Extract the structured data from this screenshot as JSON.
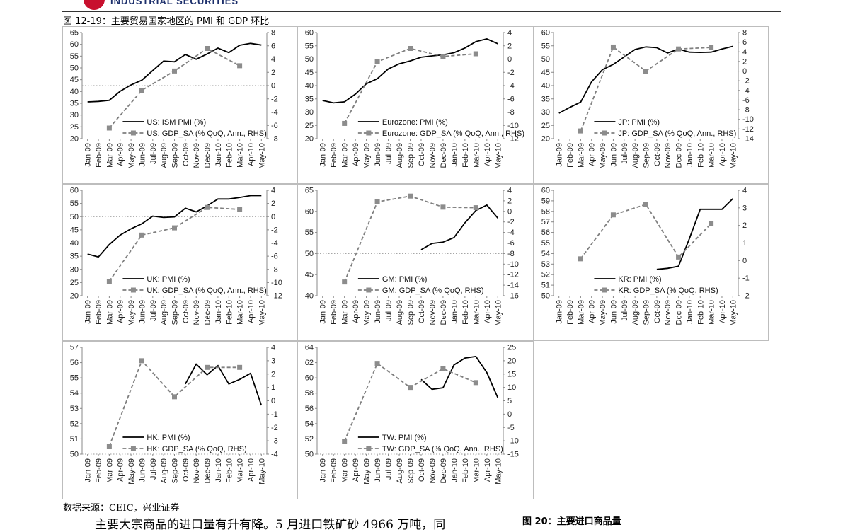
{
  "header": {
    "logo_text": "INDUSTRIAL SECURITIES"
  },
  "figure_title": "图 12-19：主要贸易国家地区的 PMI 和 GDP 环比",
  "source_note": "数据来源：CEIC，兴业证券",
  "body_text": "主要大宗商品的进口量有升有降。5 月进口铁矿砂 4966 万吨，同",
  "next_figure_title": "图 20：主要进口商品量",
  "months": [
    "Jan-09",
    "Feb-09",
    "Mar-09",
    "Apr-09",
    "May-09",
    "Jun-09",
    "Jul-09",
    "Aug-09",
    "Sep-09",
    "Oct-09",
    "Nov-09",
    "Dec-09",
    "Jan-10",
    "Feb-10",
    "Mar-10",
    "Apr-10",
    "May-10"
  ],
  "colors": {
    "pmi": "#000000",
    "gdp": "#7f7f7f",
    "gdp_marker": "#8c8c8c",
    "refline": "#9a9a9a",
    "frame": "#bdbdbd"
  },
  "chart_data": [
    {
      "type": "line",
      "series": [
        {
          "name": "US: ISM PMI (%)",
          "axis": "left",
          "style": "solid",
          "values": [
            35.6,
            35.8,
            36.3,
            40.1,
            42.8,
            44.8,
            48.9,
            52.9,
            52.6,
            55.7,
            53.7,
            55.9,
            58.4,
            56.5,
            59.6,
            60.4,
            59.7
          ]
        },
        {
          "name": "US: GDP_SA (% QoQ, Ann., RHS)",
          "axis": "right",
          "style": "dashed-square",
          "values": [
            null,
            null,
            -6.4,
            null,
            null,
            -0.7,
            null,
            null,
            2.2,
            null,
            null,
            5.6,
            null,
            null,
            3.0,
            null,
            null
          ]
        }
      ],
      "yleft": {
        "min": 20,
        "max": 65,
        "step": 5
      },
      "yright": {
        "min": -8,
        "max": 8,
        "step": 2
      },
      "refline_right": 0
    },
    {
      "type": "line",
      "series": [
        {
          "name": "Eurozone: PMI (%)",
          "axis": "left",
          "style": "solid",
          "values": [
            34.4,
            33.5,
            33.9,
            36.8,
            40.7,
            42.6,
            46.3,
            48.2,
            49.3,
            50.7,
            51.2,
            51.6,
            52.4,
            54.2,
            56.6,
            57.6,
            55.8
          ]
        },
        {
          "name": "Eurozone: GDP_SA (% QoQ, Ann., RHS)",
          "axis": "right",
          "style": "dashed-square",
          "values": [
            null,
            null,
            -9.7,
            null,
            null,
            -0.4,
            null,
            null,
            1.6,
            null,
            null,
            0.4,
            null,
            null,
            0.8,
            null,
            null
          ]
        }
      ],
      "yleft": {
        "min": 20,
        "max": 60,
        "step": 5
      },
      "yright": {
        "min": -12,
        "max": 4,
        "step": 2
      },
      "refline_right": 0
    },
    {
      "type": "line",
      "series": [
        {
          "name": "JP: PMI (%)",
          "axis": "left",
          "style": "solid",
          "values": [
            29.6,
            31.8,
            33.8,
            41.4,
            46.0,
            48.0,
            50.8,
            53.6,
            54.6,
            54.3,
            52.3,
            53.8,
            52.6,
            52.5,
            52.6,
            53.8,
            54.8
          ]
        },
        {
          "name": "JP: GDP_SA (% QoQ, Ann., RHS)",
          "axis": "right",
          "style": "dashed-square",
          "values": [
            null,
            null,
            -12.4,
            null,
            null,
            5.0,
            null,
            null,
            0.0,
            null,
            null,
            4.6,
            null,
            null,
            4.9,
            null,
            null
          ]
        }
      ],
      "yleft": {
        "min": 20,
        "max": 60,
        "step": 5
      },
      "yright": {
        "min": -14,
        "max": 8,
        "step": 2
      },
      "refline_right": 0
    },
    {
      "type": "line",
      "series": [
        {
          "name": "UK: PMI (%)",
          "axis": "left",
          "style": "solid",
          "values": [
            35.8,
            34.7,
            39.4,
            43.0,
            45.4,
            47.3,
            50.2,
            49.7,
            49.9,
            53.2,
            51.8,
            54.1,
            56.7,
            56.7,
            57.3,
            58.0,
            58.0
          ]
        },
        {
          "name": "UK: GDP_SA (% QoQ, Ann., RHS)",
          "axis": "right",
          "style": "dashed-square",
          "values": [
            null,
            null,
            -9.8,
            null,
            null,
            -2.8,
            null,
            null,
            -1.7,
            null,
            null,
            1.4,
            null,
            null,
            1.1,
            null,
            null
          ]
        }
      ],
      "yleft": {
        "min": 20,
        "max": 60,
        "step": 5
      },
      "yright": {
        "min": -12,
        "max": 4,
        "step": 2
      },
      "refline_right": 0
    },
    {
      "type": "line",
      "series": [
        {
          "name": "GM: PMI (%)",
          "axis": "left",
          "style": "solid",
          "values": [
            null,
            null,
            null,
            null,
            null,
            null,
            null,
            null,
            null,
            50.9,
            52.4,
            52.7,
            53.8,
            57.3,
            60.2,
            61.5,
            58.4
          ]
        },
        {
          "name": "GM: GDP_SA (% QoQ, RHS)",
          "axis": "right",
          "style": "dashed-square",
          "values": [
            null,
            null,
            -13.4,
            null,
            null,
            1.8,
            null,
            null,
            2.9,
            null,
            null,
            0.8,
            null,
            null,
            0.7,
            null,
            null
          ]
        }
      ],
      "yleft": {
        "min": 40,
        "max": 65,
        "step": 5
      },
      "yright": {
        "min": -16,
        "max": 4,
        "step": 2
      },
      "refline_right": -8
    },
    {
      "type": "line",
      "series": [
        {
          "name": "KR: PMI (%)",
          "axis": "left",
          "style": "solid",
          "values": [
            null,
            null,
            null,
            null,
            null,
            null,
            null,
            null,
            null,
            52.5,
            52.6,
            52.8,
            55.4,
            58.2,
            58.2,
            58.2,
            59.2
          ]
        },
        {
          "name": "KR: GDP_SA (% QoQ, RHS)",
          "axis": "right",
          "style": "dashed-square",
          "values": [
            null,
            null,
            0.1,
            null,
            null,
            2.6,
            null,
            null,
            3.2,
            null,
            null,
            0.2,
            null,
            null,
            2.1,
            null,
            null
          ]
        }
      ],
      "yleft": {
        "min": 50,
        "max": 60,
        "step": 1
      },
      "yright": {
        "min": -2,
        "max": 4,
        "step": 1
      },
      "refline_right": null
    },
    {
      "type": "line",
      "series": [
        {
          "name": "HK: PMI (%)",
          "axis": "left",
          "style": "solid",
          "values": [
            null,
            null,
            null,
            null,
            null,
            null,
            null,
            null,
            null,
            54.6,
            55.9,
            55.2,
            55.8,
            54.6,
            54.9,
            55.3,
            53.2
          ]
        },
        {
          "name": "HK: GDP_SA (% QoQ, RHS)",
          "axis": "right",
          "style": "dashed-square",
          "values": [
            null,
            null,
            -3.4,
            null,
            null,
            3.0,
            null,
            null,
            0.3,
            null,
            null,
            2.5,
            null,
            null,
            2.5,
            null,
            null
          ]
        }
      ],
      "yleft": {
        "min": 50,
        "max": 57,
        "step": 1
      },
      "yright": {
        "min": -4,
        "max": 4,
        "step": 1
      },
      "refline_right": -4
    },
    {
      "type": "line",
      "series": [
        {
          "name": "TW: PMI (%)",
          "axis": "left",
          "style": "solid",
          "values": [
            null,
            null,
            null,
            null,
            null,
            null,
            null,
            null,
            null,
            59.8,
            58.5,
            58.7,
            61.7,
            62.6,
            62.8,
            60.7,
            57.4
          ]
        },
        {
          "name": "TW: GDP_SA (% QoQ, Ann., RHS)",
          "axis": "right",
          "style": "dashed-square",
          "values": [
            null,
            null,
            -10.1,
            null,
            null,
            19.0,
            null,
            null,
            10.0,
            null,
            null,
            17.0,
            null,
            null,
            11.8,
            null,
            null
          ]
        }
      ],
      "yleft": {
        "min": 50,
        "max": 64,
        "step": 2
      },
      "yright": {
        "min": -15,
        "max": 25,
        "step": 5
      },
      "refline_right": -15
    }
  ]
}
